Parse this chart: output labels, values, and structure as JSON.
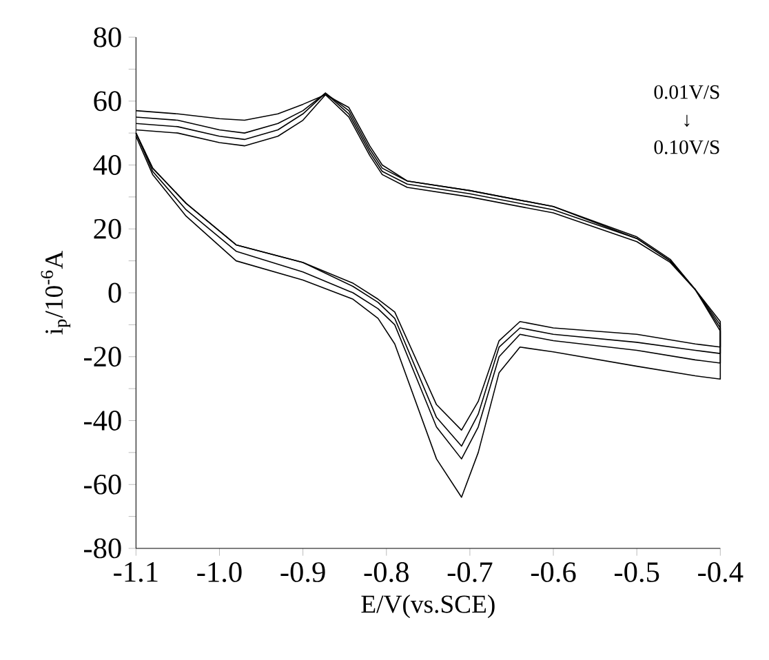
{
  "chart_data": {
    "type": "line",
    "xlabel": "E/V(vs.SCE)",
    "ylabel": "i$_{p}$/10$^{-6}$A",
    "annotations": [
      "0.01V/S",
      "↓",
      "0.10V/S"
    ],
    "xlim": [
      -1.1,
      -0.4
    ],
    "ylim": [
      -80,
      80
    ],
    "xticks": [
      -1.1,
      {
        "value": -1.0,
        "label": "-1.0"
      },
      -0.9,
      -0.8,
      -0.7,
      -0.6,
      -0.5,
      -0.4
    ],
    "yticks": [
      -80,
      {
        "value": -70,
        "label": null
      },
      -60,
      {
        "value": -50,
        "label": null
      },
      -40,
      {
        "value": -30,
        "label": null
      },
      -20,
      {
        "value": -10,
        "label": null
      },
      0,
      {
        "value": 10,
        "label": null
      },
      20,
      {
        "value": 30,
        "label": null
      },
      40,
      {
        "value": 50,
        "label": null
      },
      60,
      {
        "value": 70,
        "label": null
      },
      80
    ],
    "marker": "none",
    "line_style": "solid",
    "series": [
      {
        "color": "#000000",
        "x": [
          -1.1,
          -1.05,
          -1.0,
          -0.97,
          -0.93,
          -0.9,
          -0.873,
          -0.845,
          -0.82,
          -0.805,
          -0.775,
          -0.7,
          -0.6,
          -0.5,
          -0.46,
          -0.43,
          -0.4,
          -0.4,
          -0.43,
          -0.5,
          -0.6,
          -0.64,
          -0.665,
          -0.69,
          -0.71,
          -0.74,
          -0.79,
          -0.81,
          -0.84,
          -0.9,
          -0.98,
          -1.04,
          -1.08,
          -1.1
        ],
        "values": [
          51,
          50,
          47,
          46,
          49,
          54,
          62,
          58,
          46,
          40,
          35,
          32,
          27,
          17.5,
          10.5,
          1,
          -9,
          -17,
          -16,
          -13,
          -11,
          -9,
          -15,
          -34,
          -43,
          -35,
          -6,
          -2,
          3,
          9.5,
          15,
          28,
          39,
          50
        ]
      },
      {
        "color": "#000000",
        "x": [
          -1.1,
          -1.05,
          -1.0,
          -0.97,
          -0.93,
          -0.9,
          -0.873,
          -0.845,
          -0.82,
          -0.805,
          -0.775,
          -0.7,
          -0.6,
          -0.5,
          -0.46,
          -0.43,
          -0.4,
          -0.4,
          -0.43,
          -0.5,
          -0.6,
          -0.64,
          -0.665,
          -0.69,
          -0.71,
          -0.74,
          -0.79,
          -0.81,
          -0.84,
          -0.9,
          -0.98,
          -1.04,
          -1.08,
          -1.1
        ],
        "values": [
          53,
          52,
          49,
          48,
          51,
          56,
          62.5,
          57,
          45,
          39,
          35,
          32,
          27,
          17,
          10,
          1,
          -10,
          -19,
          -18,
          -15.5,
          -13,
          -11,
          -17,
          -38,
          -48,
          -39,
          -8,
          -3,
          2,
          9.5,
          15,
          28,
          39,
          50
        ]
      },
      {
        "color": "#000000",
        "x": [
          -1.1,
          -1.05,
          -1.0,
          -0.97,
          -0.93,
          -0.9,
          -0.873,
          -0.845,
          -0.82,
          -0.805,
          -0.775,
          -0.7,
          -0.6,
          -0.5,
          -0.46,
          -0.43,
          -0.4,
          -0.4,
          -0.43,
          -0.5,
          -0.6,
          -0.64,
          -0.665,
          -0.69,
          -0.71,
          -0.74,
          -0.79,
          -0.81,
          -0.84,
          -0.9,
          -0.98,
          -1.04,
          -1.08,
          -1.1
        ],
        "values": [
          55,
          54,
          51,
          50,
          53,
          57,
          62.5,
          56,
          44,
          38,
          34,
          31,
          26,
          17,
          10,
          1,
          -11,
          -22,
          -21,
          -18,
          -15,
          -13,
          -20,
          -42,
          -52,
          -42,
          -10,
          -5,
          0,
          6.5,
          13,
          26,
          38,
          50
        ]
      },
      {
        "color": "#000000",
        "x": [
          -1.1,
          -1.05,
          -1.0,
          -0.97,
          -0.93,
          -0.9,
          -0.873,
          -0.845,
          -0.82,
          -0.805,
          -0.775,
          -0.7,
          -0.6,
          -0.5,
          -0.46,
          -0.43,
          -0.4,
          -0.4,
          -0.43,
          -0.5,
          -0.6,
          -0.64,
          -0.665,
          -0.69,
          -0.71,
          -0.74,
          -0.79,
          -0.81,
          -0.84,
          -0.9,
          -0.98,
          -1.04,
          -1.08,
          -1.1
        ],
        "values": [
          57,
          56,
          54.5,
          54,
          56,
          59,
          62,
          55,
          43,
          37,
          33,
          30,
          25,
          16,
          9.5,
          1,
          -12,
          -27,
          -26,
          -23,
          -18.5,
          -17,
          -25,
          -50,
          -64,
          -52,
          -16,
          -8,
          -2,
          4,
          10,
          24,
          37,
          49
        ]
      }
    ]
  }
}
